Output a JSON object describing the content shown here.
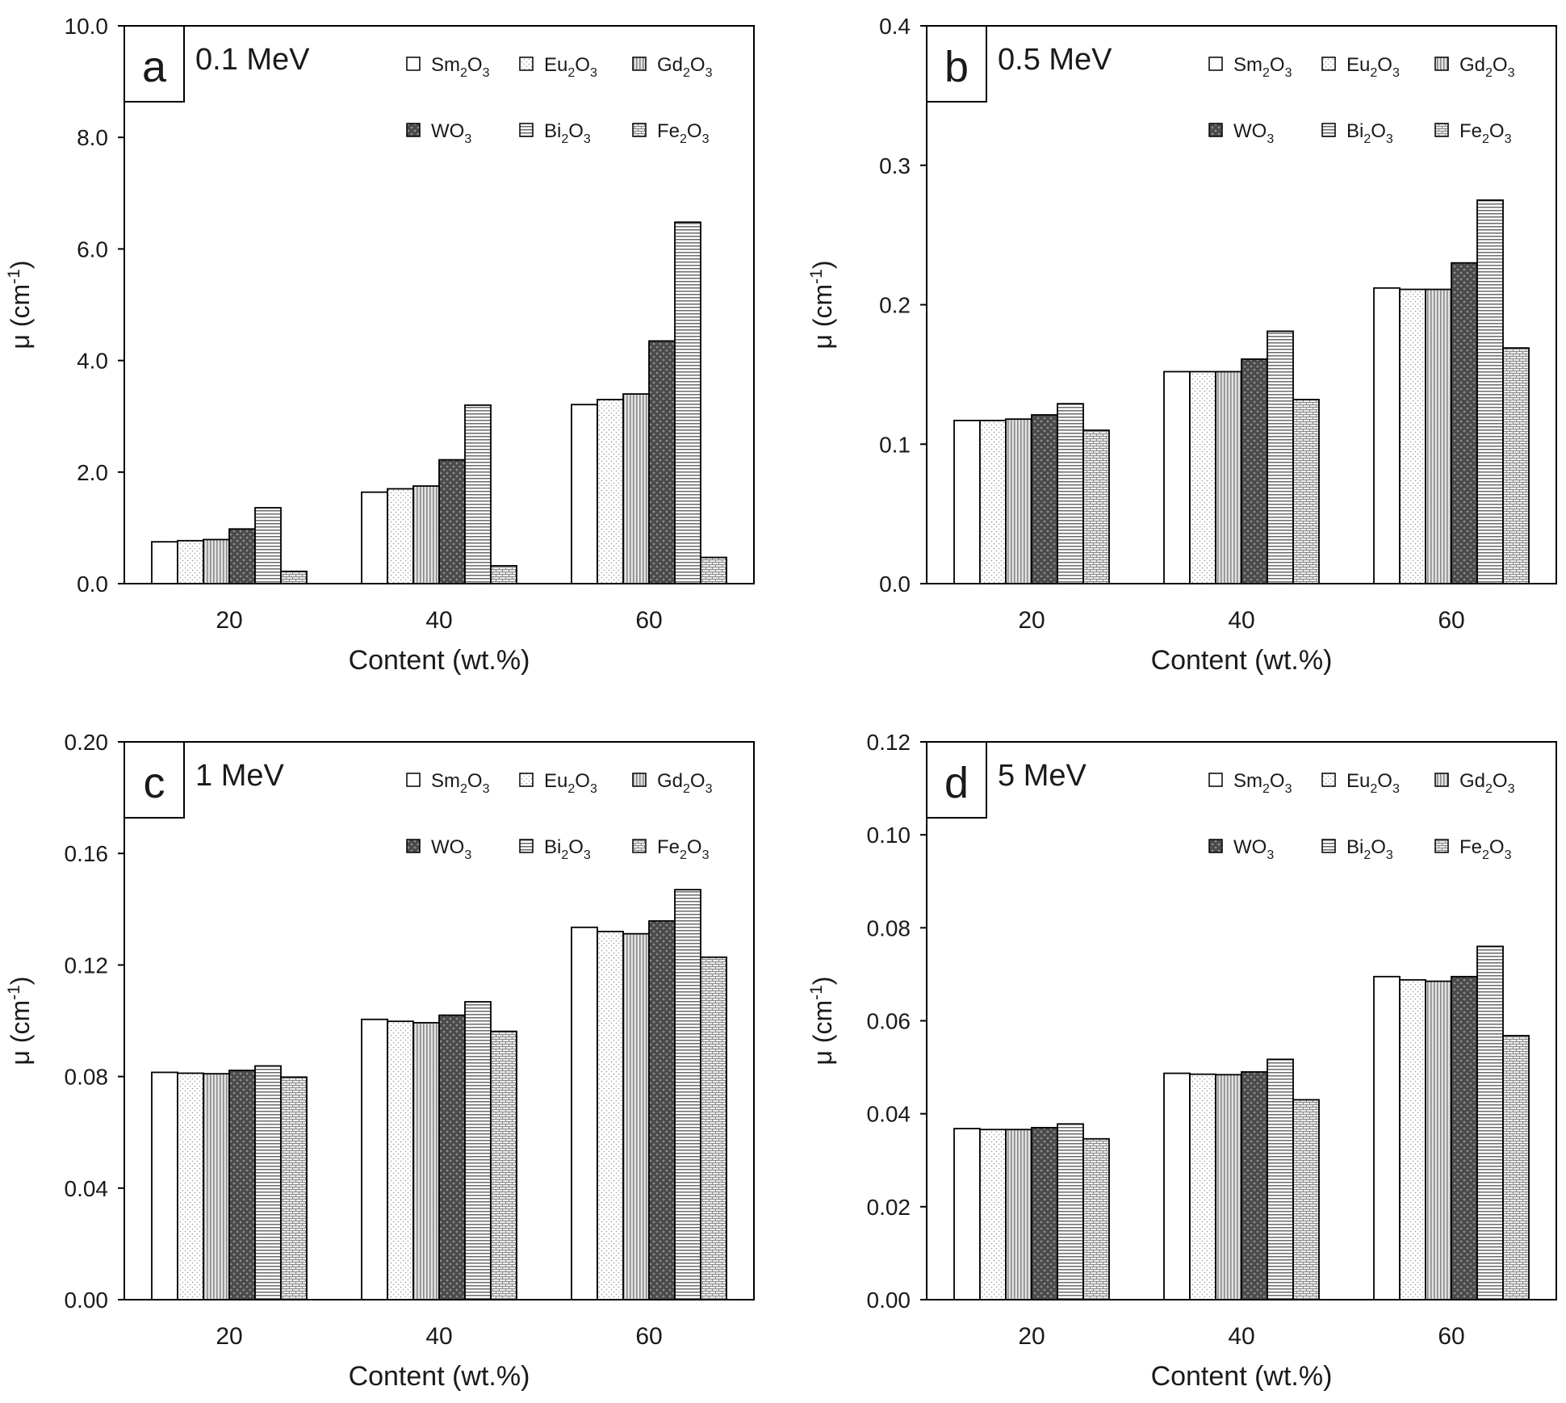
{
  "figure": {
    "series_names": [
      "Sm2O3",
      "Eu2O3",
      "Gd2O3",
      "WO3",
      "Bi2O3",
      "Fe2O3"
    ],
    "legend_labels": [
      {
        "base": "Sm",
        "sub1": "2",
        "mid": "O",
        "sub2": "3"
      },
      {
        "base": "Eu",
        "sub1": "2",
        "mid": "O",
        "sub2": "3"
      },
      {
        "base": "Gd",
        "sub1": "2",
        "mid": "O",
        "sub2": "3"
      },
      {
        "base": "WO",
        "sub1": "3",
        "mid": "",
        "sub2": ""
      },
      {
        "base": "Bi",
        "sub1": "2",
        "mid": "O",
        "sub2": "3"
      },
      {
        "base": "Fe",
        "sub1": "2",
        "mid": "O",
        "sub2": "3"
      }
    ],
    "ylabel": {
      "main": "μ (cm",
      "sup": "-1",
      "close": ")"
    }
  },
  "chart_data": [
    {
      "type": "bar",
      "panel_letter": "a",
      "title": "0.1 MeV",
      "xlabel": "Content (wt.%)",
      "ylabel": "μ (cm-1)",
      "categories": [
        "20",
        "40",
        "60"
      ],
      "ylim": [
        0,
        10
      ],
      "yticks": [
        "0.0",
        "2.0",
        "4.0",
        "6.0",
        "8.0",
        "10.0"
      ],
      "legend_position": "top-right",
      "series": [
        {
          "name": "Sm2O3",
          "values": [
            0.75,
            1.64,
            3.21
          ]
        },
        {
          "name": "Eu2O3",
          "values": [
            0.77,
            1.7,
            3.3
          ]
        },
        {
          "name": "Gd2O3",
          "values": [
            0.79,
            1.75,
            3.4
          ]
        },
        {
          "name": "WO3",
          "values": [
            0.98,
            2.22,
            4.35
          ]
        },
        {
          "name": "Bi2O3",
          "values": [
            1.36,
            3.2,
            6.48
          ]
        },
        {
          "name": "Fe2O3",
          "values": [
            0.22,
            0.32,
            0.47
          ]
        }
      ]
    },
    {
      "type": "bar",
      "panel_letter": "b",
      "title": "0.5 MeV",
      "xlabel": "Content (wt.%)",
      "ylabel": "μ (cm-1)",
      "categories": [
        "20",
        "40",
        "60"
      ],
      "ylim": [
        0,
        0.4
      ],
      "yticks": [
        "0.0",
        "0.1",
        "0.2",
        "0.3",
        "0.4"
      ],
      "legend_position": "top-right",
      "series": [
        {
          "name": "Sm2O3",
          "values": [
            0.117,
            0.152,
            0.212
          ]
        },
        {
          "name": "Eu2O3",
          "values": [
            0.117,
            0.152,
            0.211
          ]
        },
        {
          "name": "Gd2O3",
          "values": [
            0.118,
            0.152,
            0.211
          ]
        },
        {
          "name": "WO3",
          "values": [
            0.121,
            0.161,
            0.23
          ]
        },
        {
          "name": "Bi2O3",
          "values": [
            0.129,
            0.181,
            0.275
          ]
        },
        {
          "name": "Fe2O3",
          "values": [
            0.11,
            0.132,
            0.169
          ]
        }
      ]
    },
    {
      "type": "bar",
      "panel_letter": "c",
      "title": "1 MeV",
      "xlabel": "Content (wt.%)",
      "ylabel": "μ (cm-1)",
      "categories": [
        "20",
        "40",
        "60"
      ],
      "ylim": [
        0,
        0.2
      ],
      "yticks": [
        "0.00",
        "0.04",
        "0.08",
        "0.12",
        "0.16",
        "0.20"
      ],
      "legend_position": "top-right",
      "series": [
        {
          "name": "Sm2O3",
          "values": [
            0.0815,
            0.1005,
            0.1335
          ]
        },
        {
          "name": "Eu2O3",
          "values": [
            0.0812,
            0.0998,
            0.132
          ]
        },
        {
          "name": "Gd2O3",
          "values": [
            0.081,
            0.0993,
            0.1312
          ]
        },
        {
          "name": "WO3",
          "values": [
            0.0822,
            0.102,
            0.1358
          ]
        },
        {
          "name": "Bi2O3",
          "values": [
            0.0838,
            0.1068,
            0.147
          ]
        },
        {
          "name": "Fe2O3",
          "values": [
            0.0798,
            0.0962,
            0.1228
          ]
        }
      ]
    },
    {
      "type": "bar",
      "panel_letter": "d",
      "title": "5 MeV",
      "xlabel": "Content (wt.%)",
      "ylabel": "μ (cm-1)",
      "categories": [
        "20",
        "40",
        "60"
      ],
      "ylim": [
        0,
        0.12
      ],
      "yticks": [
        "0.00",
        "0.02",
        "0.04",
        "0.06",
        "0.08",
        "0.10",
        "0.12"
      ],
      "legend_position": "top-right",
      "series": [
        {
          "name": "Sm2O3",
          "values": [
            0.0368,
            0.0487,
            0.0695
          ]
        },
        {
          "name": "Eu2O3",
          "values": [
            0.0366,
            0.0485,
            0.0688
          ]
        },
        {
          "name": "Gd2O3",
          "values": [
            0.0366,
            0.0484,
            0.0685
          ]
        },
        {
          "name": "WO3",
          "values": [
            0.037,
            0.049,
            0.0695
          ]
        },
        {
          "name": "Bi2O3",
          "values": [
            0.0378,
            0.0517,
            0.076
          ]
        },
        {
          "name": "Fe2O3",
          "values": [
            0.0346,
            0.043,
            0.0568
          ]
        }
      ]
    }
  ]
}
